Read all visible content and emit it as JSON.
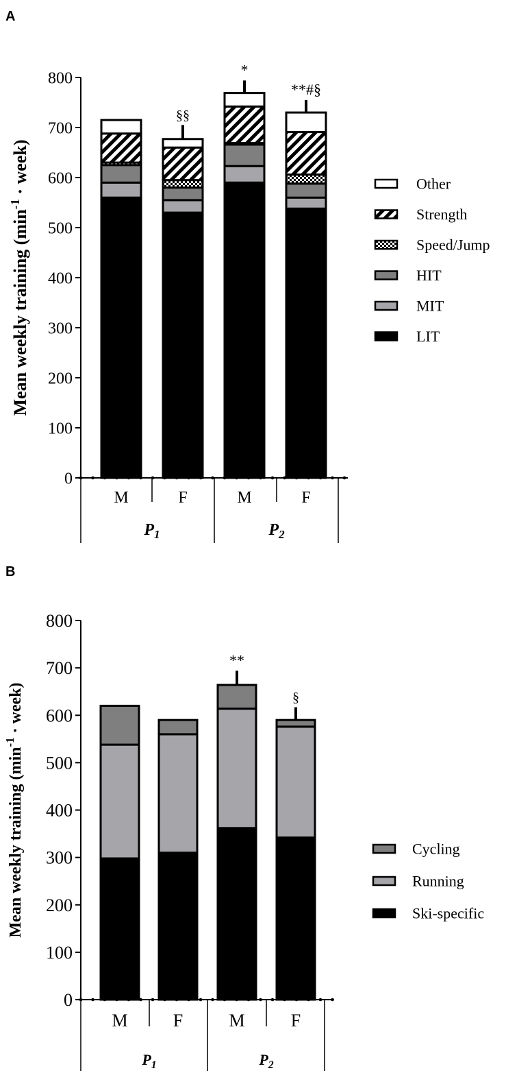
{
  "chart_data": [
    {
      "panel": "A",
      "type": "bar",
      "stacked": true,
      "ylabel_main": "Mean weekly training (min",
      "ylabel_sup": "-1",
      "ylabel_tail": " · week)",
      "ylim": [
        0,
        800
      ],
      "yticks": [
        "0",
        "100",
        "200",
        "300",
        "400",
        "500",
        "600",
        "700",
        "800"
      ],
      "categories": [
        "M",
        "F",
        "M",
        "F"
      ],
      "groups": [
        {
          "name": "P",
          "sub": "1"
        },
        {
          "name": "P",
          "sub": "2"
        }
      ],
      "series": [
        {
          "name": "LIT",
          "pattern": "black",
          "values": [
            560,
            530,
            590,
            538
          ]
        },
        {
          "name": "MIT",
          "pattern": "lightgray",
          "values": [
            30,
            25,
            33,
            22
          ]
        },
        {
          "name": "HIT",
          "pattern": "darkgray",
          "values": [
            35,
            25,
            43,
            28
          ]
        },
        {
          "name": "Speed/Jump",
          "pattern": "checker",
          "values": [
            5,
            15,
            3,
            18
          ]
        },
        {
          "name": "Strength",
          "pattern": "hatch",
          "values": [
            58,
            65,
            73,
            85
          ]
        },
        {
          "name": "Other",
          "pattern": "white",
          "values": [
            27,
            17,
            27,
            39
          ]
        }
      ],
      "error_bars": [
        0,
        28,
        25,
        25
      ],
      "annotations": [
        "",
        "§§",
        "*",
        "**#§"
      ],
      "legend_order": [
        "Other",
        "Strength",
        "Speed/Jump",
        "HIT",
        "MIT",
        "LIT"
      ],
      "legend": "right"
    },
    {
      "panel": "B",
      "type": "bar",
      "stacked": true,
      "ylabel_main": "Mean weekly training (min",
      "ylabel_sup": "-1",
      "ylabel_tail": " · week)",
      "ylim": [
        0,
        800
      ],
      "yticks": [
        "0",
        "100",
        "200",
        "300",
        "400",
        "500",
        "600",
        "700",
        "800"
      ],
      "categories": [
        "M",
        "F",
        "M",
        "F"
      ],
      "groups": [
        {
          "name": "P",
          "sub": "1"
        },
        {
          "name": "P",
          "sub": "2"
        }
      ],
      "series": [
        {
          "name": "Ski-specific",
          "pattern": "black",
          "values": [
            298,
            310,
            362,
            342
          ]
        },
        {
          "name": "Running",
          "pattern": "lightgray",
          "values": [
            240,
            250,
            252,
            234
          ]
        },
        {
          "name": "Cycling",
          "pattern": "darkgray",
          "values": [
            82,
            30,
            50,
            14
          ]
        }
      ],
      "error_bars": [
        0,
        0,
        30,
        27
      ],
      "annotations": [
        "",
        "",
        "**",
        "§"
      ],
      "legend_order": [
        "Cycling",
        "Running",
        "Ski-specific"
      ],
      "legend": "right"
    }
  ],
  "colors": {
    "black": "#000000",
    "lightgray": "#a6a6aa",
    "darkgray": "#7f7f7f",
    "white": "#ffffff"
  }
}
